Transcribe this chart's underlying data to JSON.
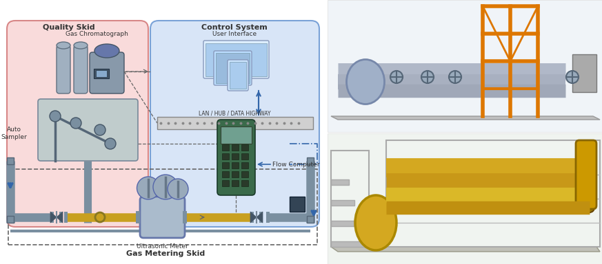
{
  "fig_width": 8.73,
  "fig_height": 3.84,
  "bg_color": "#ffffff",
  "quality_skid_label": "Quality Skid",
  "control_system_label": "Control System",
  "gas_chromatograph_label": "Gas Chromatograph",
  "auto_sampler_label": "Auto\nSampler",
  "user_interface_label": "User Interface",
  "lan_hub_label": "LAN / HUB / DATA HIGHWAY",
  "flow_computer_label": "Flow Computer",
  "ultrasonic_meter_label": "Ultrasonic Meter",
  "gas_metering_skid_label": "Gas Metering Skid",
  "pipe_gray": "#7a8fa0",
  "pipe_yellow": "#c8a020",
  "pipe_yellow_edge": "#a07800",
  "arrow_blue": "#3366aa",
  "dashed_gray": "#666666",
  "box_pink_face": "#f8d0d0",
  "box_pink_edge": "#cc6666",
  "box_blue_face": "#ccddf5",
  "box_blue_edge": "#5588cc",
  "auto_sampler_face": "#c0cccc",
  "auto_sampler_edge": "#778899",
  "lan_face": "#d0d0d0",
  "lan_edge": "#888888",
  "fc_face": "#3a6a4a",
  "fc_edge": "#1a3a2a",
  "fc_screen": "#70a090",
  "inst_box_face": "#334455",
  "inst_box_edge": "#112233",
  "cyl_face": "#a0b0c0",
  "cyl_edge": "#607080",
  "gc_face": "#8899aa",
  "gc_edge": "#445566"
}
